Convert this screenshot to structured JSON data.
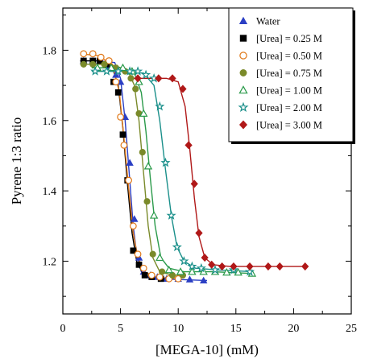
{
  "chart_data": {
    "type": "scatter",
    "title": "",
    "xlabel": "[MEGA-10] (mM)",
    "ylabel": "Pyrene 1:3 ratio",
    "xlim": [
      0,
      25
    ],
    "ylim": [
      1.05,
      1.92
    ],
    "xticks": [
      "0",
      "5",
      "10",
      "15",
      "20",
      "25"
    ],
    "yticks": [
      "1.2",
      "1.4",
      "1.6",
      "1.8"
    ],
    "grid": false,
    "legend_position": "top-right",
    "series": [
      {
        "name": "Water",
        "marker": "triangle-filled",
        "color": "#2b3fc4",
        "x": [
          1.8,
          2.6,
          3.3,
          4.0,
          4.6,
          5.0,
          5.4,
          5.8,
          6.2,
          6.6,
          7.0,
          7.6,
          8.2,
          9.0,
          10.0,
          11.0,
          12.2
        ],
        "y": [
          1.77,
          1.77,
          1.77,
          1.75,
          1.73,
          1.71,
          1.61,
          1.48,
          1.32,
          1.21,
          1.17,
          1.16,
          1.155,
          1.15,
          1.15,
          1.148,
          1.145
        ],
        "fit_x": [
          1.5,
          3.0,
          4.5,
          5.0,
          5.4,
          5.8,
          6.1,
          6.4,
          6.8,
          7.3,
          8.0,
          10.0,
          12.5
        ],
        "fit_y": [
          1.77,
          1.77,
          1.765,
          1.72,
          1.6,
          1.43,
          1.3,
          1.22,
          1.17,
          1.155,
          1.15,
          1.148,
          1.145
        ]
      },
      {
        "name": "[Urea] = 0.25 M",
        "marker": "square-filled",
        "color": "#000000",
        "x": [
          1.8,
          2.6,
          3.2,
          3.8,
          4.4,
          4.8,
          5.2,
          5.6,
          6.1,
          6.6,
          7.1,
          7.7,
          8.5
        ],
        "y": [
          1.77,
          1.77,
          1.77,
          1.76,
          1.71,
          1.68,
          1.56,
          1.43,
          1.23,
          1.19,
          1.16,
          1.155,
          1.15
        ],
        "fit_x": [
          1.5,
          3.0,
          4.2,
          4.8,
          5.2,
          5.6,
          6.0,
          6.4,
          7.0,
          8.0,
          9.0
        ],
        "fit_y": [
          1.77,
          1.77,
          1.76,
          1.7,
          1.58,
          1.42,
          1.28,
          1.2,
          1.16,
          1.15,
          1.15
        ]
      },
      {
        "name": "[Urea] = 0.50 M",
        "marker": "circle-open",
        "color": "#e07818",
        "x": [
          1.8,
          2.6,
          3.3,
          4.0,
          4.6,
          5.0,
          5.3,
          5.7,
          6.1,
          6.5,
          7.0,
          7.7,
          8.4,
          9.2,
          10.0
        ],
        "y": [
          1.79,
          1.79,
          1.78,
          1.77,
          1.71,
          1.61,
          1.53,
          1.43,
          1.3,
          1.22,
          1.18,
          1.16,
          1.155,
          1.15,
          1.15
        ],
        "fit_x": [
          1.5,
          3.0,
          4.3,
          4.9,
          5.3,
          5.7,
          6.1,
          6.5,
          7.1,
          8.0,
          10.0
        ],
        "fit_y": [
          1.79,
          1.785,
          1.76,
          1.68,
          1.55,
          1.41,
          1.28,
          1.21,
          1.17,
          1.155,
          1.15
        ]
      },
      {
        "name": "[Urea] = 0.75 M",
        "marker": "circle-filled",
        "color": "#7a8a2a",
        "x": [
          1.8,
          2.6,
          3.6,
          4.6,
          5.4,
          5.9,
          6.3,
          6.6,
          6.9,
          7.3,
          7.8,
          8.6,
          9.5,
          10.4
        ],
        "y": [
          1.76,
          1.76,
          1.76,
          1.75,
          1.74,
          1.72,
          1.69,
          1.62,
          1.51,
          1.37,
          1.22,
          1.17,
          1.16,
          1.16
        ],
        "fit_x": [
          1.5,
          4.0,
          5.6,
          6.2,
          6.6,
          7.0,
          7.4,
          7.8,
          8.4,
          9.5,
          10.5
        ],
        "fit_y": [
          1.76,
          1.76,
          1.745,
          1.7,
          1.6,
          1.45,
          1.3,
          1.21,
          1.17,
          1.16,
          1.16
        ]
      },
      {
        "name": "[Urea] = 1.00 M",
        "marker": "triangle-open",
        "color": "#2a9a4a",
        "x": [
          3.0,
          4.2,
          5.2,
          6.0,
          6.6,
          7.0,
          7.4,
          7.9,
          8.4,
          9.2,
          10.2,
          11.2,
          12.2,
          13.2,
          14.2,
          15.2,
          16.4
        ],
        "y": [
          1.75,
          1.75,
          1.75,
          1.74,
          1.71,
          1.62,
          1.47,
          1.33,
          1.21,
          1.175,
          1.17,
          1.17,
          1.17,
          1.17,
          1.168,
          1.168,
          1.165
        ],
        "fit_x": [
          2.5,
          5.0,
          6.2,
          6.8,
          7.2,
          7.6,
          8.0,
          8.5,
          9.2,
          10.5,
          13.0,
          16.5
        ],
        "fit_y": [
          1.75,
          1.75,
          1.735,
          1.68,
          1.57,
          1.43,
          1.3,
          1.21,
          1.18,
          1.17,
          1.17,
          1.165
        ]
      },
      {
        "name": "[Urea] = 2.00 M",
        "marker": "star-open",
        "color": "#1a8f8a",
        "x": [
          2.8,
          3.8,
          4.8,
          5.8,
          6.5,
          7.2,
          7.9,
          8.4,
          8.9,
          9.4,
          9.9,
          10.5,
          11.2,
          12.0,
          13.2,
          14.8,
          16.2
        ],
        "y": [
          1.74,
          1.74,
          1.74,
          1.74,
          1.74,
          1.73,
          1.72,
          1.64,
          1.48,
          1.33,
          1.24,
          1.2,
          1.185,
          1.18,
          1.175,
          1.175,
          1.17
        ],
        "fit_x": [
          2.5,
          5.0,
          7.0,
          7.9,
          8.4,
          8.9,
          9.4,
          9.9,
          10.5,
          11.5,
          13.5,
          16.5
        ],
        "fit_y": [
          1.74,
          1.74,
          1.735,
          1.7,
          1.6,
          1.46,
          1.33,
          1.24,
          1.2,
          1.18,
          1.175,
          1.17
        ]
      },
      {
        "name": "[Urea] = 3.00 M",
        "marker": "diamond-filled",
        "color": "#b01818",
        "x": [
          6.5,
          8.3,
          9.5,
          10.4,
          10.9,
          11.4,
          11.8,
          12.3,
          12.9,
          13.8,
          14.8,
          16.2,
          17.8,
          18.8,
          21.0
        ],
        "y": [
          1.72,
          1.72,
          1.72,
          1.69,
          1.53,
          1.42,
          1.28,
          1.21,
          1.19,
          1.185,
          1.185,
          1.185,
          1.185,
          1.185,
          1.185
        ],
        "fit_x": [
          6.0,
          9.0,
          10.0,
          10.6,
          11.0,
          11.4,
          11.8,
          12.3,
          13.0,
          14.5,
          17.0,
          21.0
        ],
        "fit_y": [
          1.72,
          1.72,
          1.71,
          1.64,
          1.52,
          1.38,
          1.27,
          1.21,
          1.19,
          1.185,
          1.185,
          1.185
        ]
      }
    ]
  }
}
